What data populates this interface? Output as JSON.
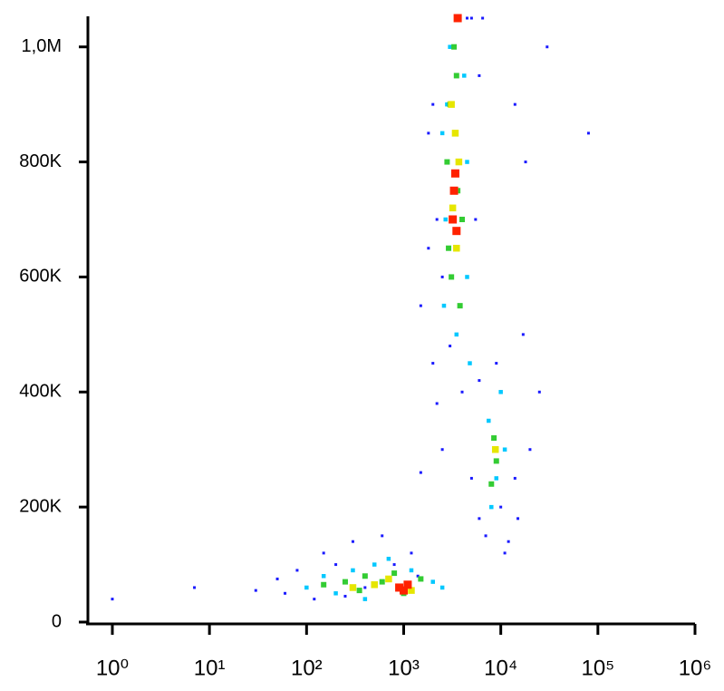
{
  "chart_data": {
    "type": "scatter",
    "xscale": "log",
    "xlim": [
      0.56,
      1000000
    ],
    "ylim": [
      0,
      1050000
    ],
    "xticks": [
      {
        "value": 1,
        "label": "10⁰"
      },
      {
        "value": 10,
        "label": "10¹"
      },
      {
        "value": 100,
        "label": "10²"
      },
      {
        "value": 1000,
        "label": "10³"
      },
      {
        "value": 10000,
        "label": "10⁴"
      },
      {
        "value": 100000,
        "label": "10⁵"
      },
      {
        "value": 1000000,
        "label": "10⁶"
      }
    ],
    "yticks": [
      0,
      {
        "value": 200000,
        "label": "200K"
      },
      {
        "value": 400000,
        "label": "400K"
      },
      {
        "value": 600000,
        "label": "600K"
      },
      {
        "value": 800000,
        "label": "800K"
      },
      {
        "value": 1000000,
        "label": "1,0M"
      }
    ],
    "series": [
      {
        "color": "#1a1aff",
        "x": [
          1,
          7,
          30,
          50,
          80,
          120,
          150,
          200,
          300,
          400,
          600,
          1500,
          2000,
          2200,
          2500,
          5000,
          6000,
          7000,
          12000,
          15000,
          20000,
          25000,
          18000,
          1500,
          1800,
          2000,
          4500,
          5000,
          6500,
          14000,
          17000,
          1200,
          1400,
          3000,
          6000,
          30000,
          80000,
          10000,
          2500,
          4000,
          1800,
          5500,
          6000,
          2200,
          9000,
          14000,
          11000,
          800,
          60,
          250
        ],
        "values": [
          40000,
          60000,
          55000,
          75000,
          90000,
          40000,
          120000,
          100000,
          140000,
          60000,
          150000,
          260000,
          450000,
          700000,
          300000,
          250000,
          180000,
          150000,
          140000,
          180000,
          300000,
          400000,
          800000,
          550000,
          850000,
          900000,
          1050000,
          1050000,
          1050000,
          900000,
          500000,
          120000,
          80000,
          480000,
          420000,
          1000000,
          850000,
          200000,
          600000,
          400000,
          650000,
          700000,
          950000,
          380000,
          450000,
          250000,
          120000,
          100000,
          50000,
          45000
        ]
      },
      {
        "color": "#00c8ff",
        "x": [
          100,
          150,
          200,
          300,
          500,
          1200,
          2000,
          2500,
          2600,
          2800,
          3000,
          4500,
          4500,
          2700,
          4800,
          7500,
          9000,
          11000,
          8000,
          10000,
          3500,
          2500,
          4200,
          700,
          400
        ],
        "values": [
          60000,
          80000,
          50000,
          90000,
          100000,
          90000,
          70000,
          60000,
          550000,
          900000,
          1000000,
          800000,
          600000,
          700000,
          450000,
          350000,
          250000,
          300000,
          200000,
          400000,
          500000,
          850000,
          950000,
          110000,
          40000
        ]
      },
      {
        "color": "#33cc33",
        "x": [
          150,
          250,
          400,
          600,
          800,
          1500,
          3000,
          3500,
          2800,
          4000,
          3100,
          3800,
          8500,
          9000,
          8000,
          3300,
          350,
          1000,
          3600,
          2900
        ],
        "values": [
          65000,
          70000,
          80000,
          70000,
          85000,
          75000,
          900000,
          950000,
          800000,
          700000,
          600000,
          550000,
          320000,
          280000,
          240000,
          1000000,
          55000,
          50000,
          750000,
          650000
        ]
      },
      {
        "color": "#e6e600",
        "x": [
          300,
          500,
          700,
          3400,
          3200,
          3700,
          3500,
          8800,
          3100,
          1200
        ],
        "values": [
          60000,
          65000,
          75000,
          850000,
          720000,
          800000,
          650000,
          300000,
          900000,
          55000
        ]
      },
      {
        "color": "#ff2200",
        "x": [
          900,
          1000,
          3300,
          3500,
          3400,
          3600,
          3200,
          1100
        ],
        "values": [
          60000,
          55000,
          750000,
          680000,
          780000,
          1050000,
          700000,
          65000
        ]
      }
    ]
  }
}
